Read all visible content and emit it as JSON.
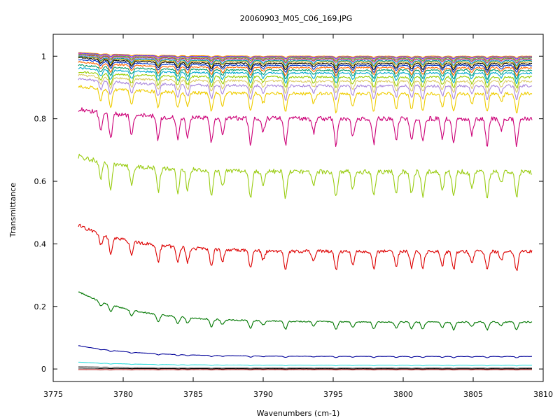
{
  "chart_data": {
    "type": "line",
    "title": "20060903_M05_C06_169.JPG",
    "xlabel": "Wavenumbers (cm-1)",
    "ylabel": "Transmittance",
    "xlim": [
      3775,
      3810
    ],
    "ylim": [
      -0.04,
      1.07
    ],
    "x_range": [
      3776.8,
      3809.2
    ],
    "xticks": [
      3775,
      3780,
      3785,
      3790,
      3795,
      3800,
      3805,
      3810
    ],
    "yticks": [
      0,
      0.2,
      0.4,
      0.6,
      0.8,
      1
    ],
    "grid": false,
    "legend": "none",
    "absorption_lines_cm1": [
      3778.4,
      3779.1,
      3780.6,
      3782.5,
      3783.9,
      3784.6,
      3786.3,
      3787.1,
      3789.1,
      3790.0,
      3791.6,
      3793.6,
      3795.2,
      3796.4,
      3797.9,
      3799.5,
      3800.6,
      3801.4,
      3802.8,
      3803.6,
      3804.9,
      3806.0,
      3807.0,
      3808.1
    ],
    "series": [
      {
        "color": "#ff9900",
        "start": 1.012,
        "baseline": 1.0,
        "dip": 0.004
      },
      {
        "color": "#4444ff",
        "start": 1.01,
        "baseline": 0.998,
        "dip": 0.006
      },
      {
        "color": "#ff44aa",
        "start": 1.008,
        "baseline": 0.996,
        "dip": 0.008
      },
      {
        "color": "#44cc44",
        "start": 1.006,
        "baseline": 0.994,
        "dip": 0.01
      },
      {
        "color": "#cc3333",
        "start": 1.004,
        "baseline": 0.991,
        "dip": 0.012
      },
      {
        "color": "#9999ff",
        "start": 1.002,
        "baseline": 0.988,
        "dip": 0.014
      },
      {
        "color": "#009999",
        "start": 1.0,
        "baseline": 0.985,
        "dip": 0.016
      },
      {
        "color": "#cc9900",
        "start": 0.998,
        "baseline": 0.981,
        "dip": 0.018
      },
      {
        "color": "#000000",
        "start": 0.996,
        "baseline": 0.976,
        "dip": 0.02
      },
      {
        "color": "#0033cc",
        "start": 0.99,
        "baseline": 0.97,
        "dip": 0.022
      },
      {
        "color": "#ff6600",
        "start": 0.982,
        "baseline": 0.963,
        "dip": 0.025
      },
      {
        "color": "#009966",
        "start": 0.972,
        "baseline": 0.955,
        "dip": 0.028
      },
      {
        "color": "#00aacc",
        "start": 0.962,
        "baseline": 0.946,
        "dip": 0.032
      },
      {
        "color": "#99cc00",
        "start": 0.95,
        "baseline": 0.933,
        "dip": 0.035
      },
      {
        "color": "#ddcc66",
        "start": 0.94,
        "baseline": 0.92,
        "dip": 0.038
      },
      {
        "color": "#aa88dd",
        "start": 0.928,
        "baseline": 0.905,
        "dip": 0.045
      },
      {
        "color": "#eecc00",
        "start": 0.905,
        "baseline": 0.88,
        "dip": 0.06
      },
      {
        "color": "#cc0077",
        "start": 0.83,
        "baseline": 0.8,
        "dip": 0.085
      },
      {
        "color": "#99cc11",
        "start": 0.68,
        "baseline": 0.63,
        "dip": 0.085
      },
      {
        "color": "#dd0000",
        "start": 0.46,
        "baseline": 0.375,
        "dip": 0.06
      },
      {
        "color": "#007700",
        "start": 0.248,
        "baseline": 0.15,
        "dip": 0.025
      },
      {
        "color": "#000099",
        "start": 0.075,
        "baseline": 0.04,
        "dip": 0.004
      },
      {
        "color": "#33dddd",
        "start": 0.022,
        "baseline": 0.012,
        "dip": 0.002
      },
      {
        "color": "#888888",
        "start": 0.008,
        "baseline": 0.004,
        "dip": 0.002
      },
      {
        "color": "#000000",
        "start": 0.003,
        "baseline": 0.001,
        "dip": 0.001
      },
      {
        "color": "#aa0000",
        "start": -0.002,
        "baseline": -0.002,
        "dip": 0.001
      }
    ]
  }
}
